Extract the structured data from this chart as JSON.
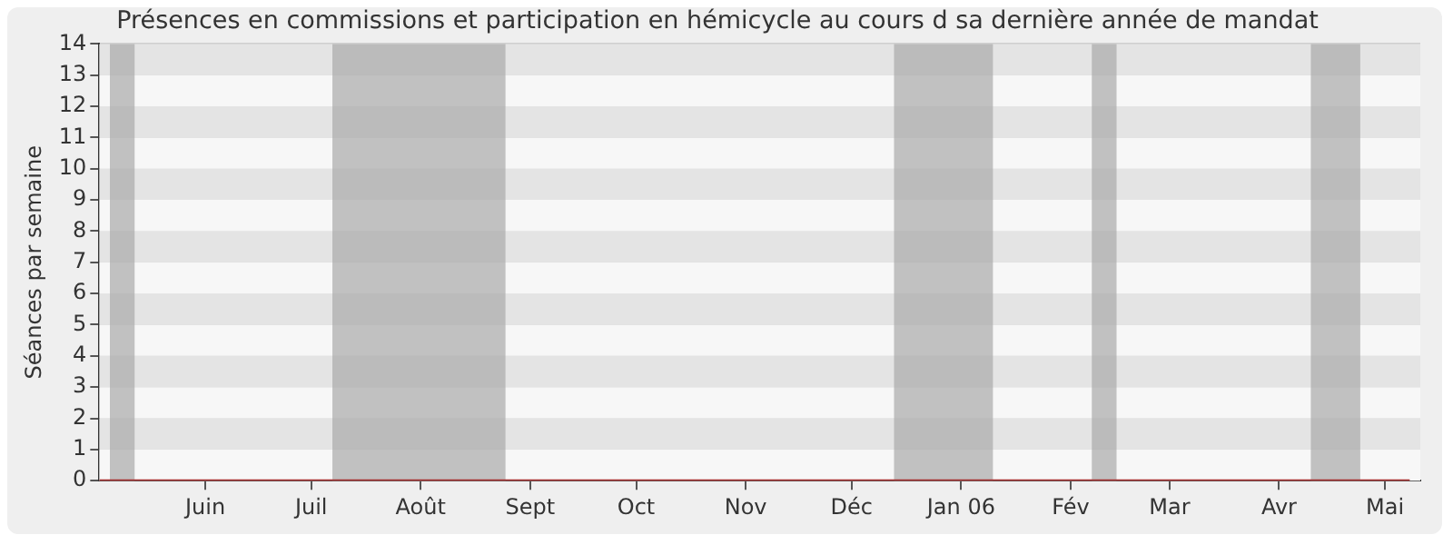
{
  "chart_data": {
    "type": "line",
    "title": "Présences en commissions et participation en hémicycle au cours d sa dernière année de mandat",
    "ylabel": "Séances par semaine",
    "x": [
      "2005-05-02",
      "2005-05-09",
      "2005-05-16",
      "2005-05-23",
      "2005-05-30",
      "2005-06-06",
      "2005-06-13",
      "2005-06-20",
      "2005-06-27",
      "2005-07-04",
      "2005-07-11",
      "2005-07-18",
      "2005-07-25",
      "2005-08-01",
      "2005-08-08",
      "2005-08-15",
      "2005-08-22",
      "2005-08-29",
      "2005-09-05",
      "2005-09-12",
      "2005-09-19",
      "2005-09-26",
      "2005-10-03",
      "2005-10-10",
      "2005-10-17",
      "2005-10-24",
      "2005-10-31",
      "2005-11-07",
      "2005-11-14",
      "2005-11-21",
      "2005-11-28",
      "2005-12-05",
      "2005-12-12",
      "2005-12-19",
      "2005-12-26",
      "2006-01-02",
      "2006-01-09",
      "2006-01-16",
      "2006-01-23",
      "2006-01-30",
      "2006-02-06",
      "2006-02-13",
      "2006-02-20",
      "2006-02-27",
      "2006-03-06",
      "2006-03-13",
      "2006-03-20",
      "2006-03-27",
      "2006-04-03",
      "2006-04-10",
      "2006-04-17",
      "2006-04-24",
      "2006-05-01",
      "2006-05-08"
    ],
    "series": [
      {
        "color": "#a52a2a",
        "values": [
          0,
          0,
          0,
          0,
          0,
          0,
          0,
          0,
          0,
          0,
          0,
          0,
          0,
          0,
          0,
          0,
          0,
          0,
          0,
          0,
          0,
          0,
          0,
          0,
          0,
          0,
          0,
          0,
          0,
          0,
          0,
          0,
          0,
          0,
          0,
          0,
          0,
          0,
          0,
          0,
          0,
          0,
          0,
          0,
          0,
          0,
          0,
          0,
          0,
          0,
          0,
          0,
          0,
          0
        ]
      }
    ],
    "xlim": [
      "2005-05-02",
      "2006-05-11"
    ],
    "xticks": [
      {
        "value": "2005-06-01",
        "label": "Juin"
      },
      {
        "value": "2005-07-01",
        "label": "Juil"
      },
      {
        "value": "2005-08-01",
        "label": "Août"
      },
      {
        "value": "2005-09-01",
        "label": "Sept"
      },
      {
        "value": "2005-10-01",
        "label": "Oct"
      },
      {
        "value": "2005-11-01",
        "label": "Nov"
      },
      {
        "value": "2005-12-01",
        "label": "Déc"
      },
      {
        "value": "2006-01-01",
        "label": "Jan 06"
      },
      {
        "value": "2006-02-01",
        "label": "Fév"
      },
      {
        "value": "2006-03-01",
        "label": "Mar"
      },
      {
        "value": "2006-04-01",
        "label": "Avr"
      },
      {
        "value": "2006-05-01",
        "label": "Mai"
      }
    ],
    "ylim": [
      0,
      14
    ],
    "yticks": [
      0,
      1,
      2,
      3,
      4,
      5,
      6,
      7,
      8,
      9,
      10,
      11,
      12,
      13,
      14
    ],
    "bands": [
      {
        "axis": "x",
        "from": "2005-05-05",
        "to": "2005-05-12",
        "color": "#aaaaaa"
      },
      {
        "axis": "x",
        "from": "2005-07-07",
        "to": "2005-08-25",
        "color": "#aaaaaa"
      },
      {
        "axis": "x",
        "from": "2005-12-13",
        "to": "2006-01-10",
        "color": "#aaaaaa"
      },
      {
        "axis": "x",
        "from": "2006-02-07",
        "to": "2006-02-14",
        "color": "#aaaaaa"
      },
      {
        "axis": "x",
        "from": "2006-04-10",
        "to": "2006-04-24",
        "color": "#aaaaaa"
      }
    ],
    "grid": "y",
    "legend": false,
    "marker": "none",
    "line_style": "solid"
  }
}
